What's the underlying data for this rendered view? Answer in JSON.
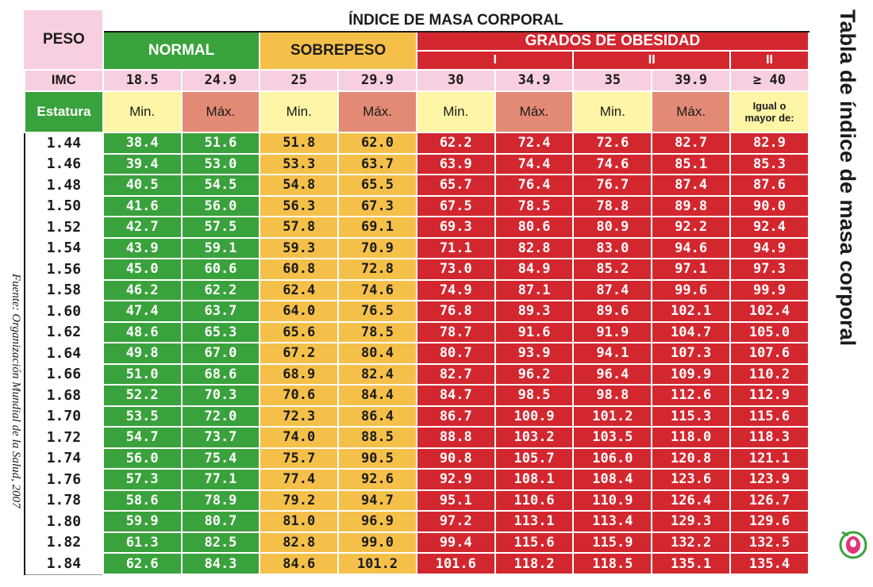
{
  "side_title": "Tabla de índice de masa corporal",
  "source": "Fuente: Organización Mundial de la Salud, 2007",
  "header": {
    "main_title": "ÍNDICE DE MASA CORPORAL",
    "peso": "PESO",
    "normal": "NORMAL",
    "sobrepeso": "SOBREPESO",
    "obesidad": "GRADOS DE OBESIDAD",
    "grades": [
      "I",
      "II",
      "II"
    ],
    "imc_label": "IMC",
    "imc_values": [
      "18.5",
      "24.9",
      "25",
      "29.9",
      "30",
      "34.9",
      "35",
      "39.9",
      "≥ 40"
    ],
    "estatura_label": "Estatura",
    "min_label": "Min.",
    "max_label": "Máx.",
    "igual_line1": "Igual o",
    "igual_line2": "mayor de:"
  },
  "colors": {
    "normal": "#3aa23c",
    "sobrepeso": "#f5c04a",
    "obesidad": "#d32730",
    "imc_row": "#f8cfe0",
    "min_header": "#fff5a6",
    "max_header": "#e28a75"
  },
  "rows": [
    {
      "estatura": "1.44",
      "values": [
        "38.4",
        "51.6",
        "51.8",
        "62.0",
        "62.2",
        "72.4",
        "72.6",
        "82.7",
        "82.9"
      ]
    },
    {
      "estatura": "1.46",
      "values": [
        "39.4",
        "53.0",
        "53.3",
        "63.7",
        "63.9",
        "74.4",
        "74.6",
        "85.1",
        "85.3"
      ]
    },
    {
      "estatura": "1.48",
      "values": [
        "40.5",
        "54.5",
        "54.8",
        "65.5",
        "65.7",
        "76.4",
        "76.7",
        "87.4",
        "87.6"
      ]
    },
    {
      "estatura": "1.50",
      "values": [
        "41.6",
        "56.0",
        "56.3",
        "67.3",
        "67.5",
        "78.5",
        "78.8",
        "89.8",
        "90.0"
      ]
    },
    {
      "estatura": "1.52",
      "values": [
        "42.7",
        "57.5",
        "57.8",
        "69.1",
        "69.3",
        "80.6",
        "80.9",
        "92.2",
        "92.4"
      ]
    },
    {
      "estatura": "1.54",
      "values": [
        "43.9",
        "59.1",
        "59.3",
        "70.9",
        "71.1",
        "82.8",
        "83.0",
        "94.6",
        "94.9"
      ]
    },
    {
      "estatura": "1.56",
      "values": [
        "45.0",
        "60.6",
        "60.8",
        "72.8",
        "73.0",
        "84.9",
        "85.2",
        "97.1",
        "97.3"
      ]
    },
    {
      "estatura": "1.58",
      "values": [
        "46.2",
        "62.2",
        "62.4",
        "74.6",
        "74.9",
        "87.1",
        "87.4",
        "99.6",
        "99.9"
      ]
    },
    {
      "estatura": "1.60",
      "values": [
        "47.4",
        "63.7",
        "64.0",
        "76.5",
        "76.8",
        "89.3",
        "89.6",
        "102.1",
        "102.4"
      ]
    },
    {
      "estatura": "1.62",
      "values": [
        "48.6",
        "65.3",
        "65.6",
        "78.5",
        "78.7",
        "91.6",
        "91.9",
        "104.7",
        "105.0"
      ]
    },
    {
      "estatura": "1.64",
      "values": [
        "49.8",
        "67.0",
        "67.2",
        "80.4",
        "80.7",
        "93.9",
        "94.1",
        "107.3",
        "107.6"
      ]
    },
    {
      "estatura": "1.66",
      "values": [
        "51.0",
        "68.6",
        "68.9",
        "82.4",
        "82.7",
        "96.2",
        "96.4",
        "109.9",
        "110.2"
      ]
    },
    {
      "estatura": "1.68",
      "values": [
        "52.2",
        "70.3",
        "70.6",
        "84.4",
        "84.7",
        "98.5",
        "98.8",
        "112.6",
        "112.9"
      ]
    },
    {
      "estatura": "1.70",
      "values": [
        "53.5",
        "72.0",
        "72.3",
        "86.4",
        "86.7",
        "100.9",
        "101.2",
        "115.3",
        "115.6"
      ]
    },
    {
      "estatura": "1.72",
      "values": [
        "54.7",
        "73.7",
        "74.0",
        "88.5",
        "88.8",
        "103.2",
        "103.5",
        "118.0",
        "118.3"
      ]
    },
    {
      "estatura": "1.74",
      "values": [
        "56.0",
        "75.4",
        "75.7",
        "90.5",
        "90.8",
        "105.7",
        "106.0",
        "120.8",
        "121.1"
      ]
    },
    {
      "estatura": "1.76",
      "values": [
        "57.3",
        "77.1",
        "77.4",
        "92.6",
        "92.9",
        "108.1",
        "108.4",
        "123.6",
        "123.9"
      ]
    },
    {
      "estatura": "1.78",
      "values": [
        "58.6",
        "78.9",
        "79.2",
        "94.7",
        "95.1",
        "110.6",
        "110.9",
        "126.4",
        "126.7"
      ]
    },
    {
      "estatura": "1.80",
      "values": [
        "59.9",
        "80.7",
        "81.0",
        "96.9",
        "97.2",
        "113.1",
        "113.4",
        "129.3",
        "129.6"
      ]
    },
    {
      "estatura": "1.82",
      "values": [
        "61.3",
        "82.5",
        "82.8",
        "99.0",
        "99.4",
        "115.6",
        "115.9",
        "132.2",
        "132.5"
      ]
    },
    {
      "estatura": "1.84",
      "values": [
        "62.6",
        "84.3",
        "84.6",
        "101.2",
        "101.6",
        "118.2",
        "118.5",
        "135.1",
        "135.4"
      ]
    }
  ]
}
